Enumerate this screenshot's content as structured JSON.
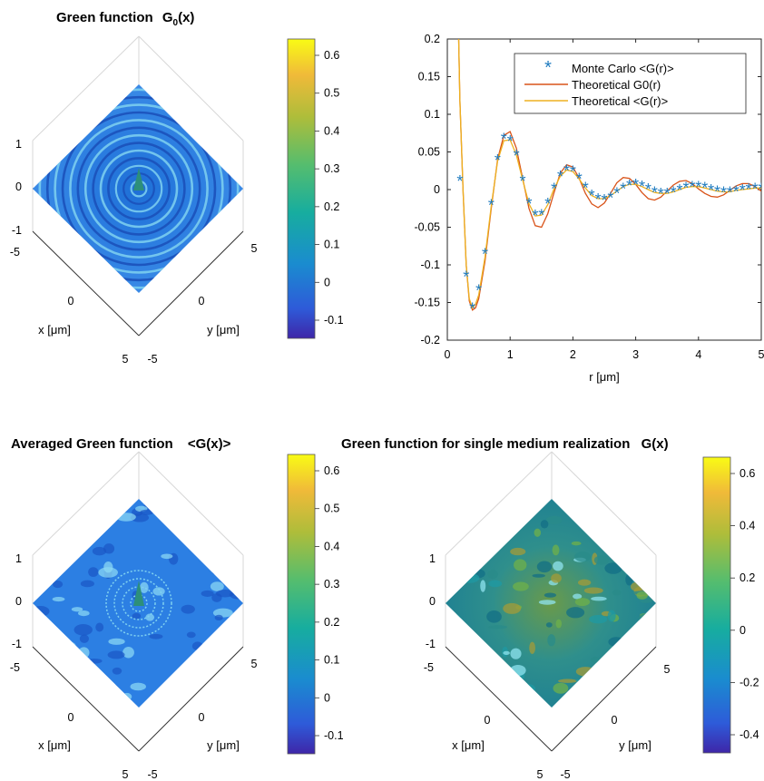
{
  "panels": {
    "tl": {
      "title": "Green function",
      "title_symbol": "G",
      "title_sub": "0",
      "title_arg": "(x)",
      "z_ticks": [
        "1",
        "0",
        "-1"
      ],
      "x_ticks": [
        "-5",
        "0",
        "5"
      ],
      "y_ticks": [
        "5",
        "0",
        "-5"
      ],
      "x_label": "x [μm]",
      "y_label": "y [μm]",
      "colorbar_ticks": [
        "0.6",
        "0.5",
        "0.4",
        "0.3",
        "0.2",
        "0.1",
        "0",
        "-0.1"
      ]
    },
    "bl": {
      "title": "Averaged Green function",
      "title_suffix": "<G(x)>",
      "z_ticks": [
        "1",
        "0",
        "-1"
      ],
      "x_ticks": [
        "-5",
        "0",
        "5"
      ],
      "y_ticks": [
        "5",
        "0",
        "-5"
      ],
      "x_label": "x [μm]",
      "y_label": "y [μm]",
      "colorbar_ticks": [
        "0.6",
        "0.5",
        "0.4",
        "0.3",
        "0.2",
        "0.1",
        "0",
        "-0.1"
      ]
    },
    "br": {
      "title": "Green function for single medium realization",
      "title_suffix": "G(x)",
      "z_ticks": [
        "1",
        "0",
        "-1"
      ],
      "x_ticks": [
        "-5",
        "0",
        "5"
      ],
      "y_ticks": [
        "5",
        "0",
        "-5"
      ],
      "x_label": "x [μm]",
      "y_label": "y [μm]",
      "colorbar_ticks": [
        "0.6",
        "0.4",
        "0.2",
        "0",
        "-0.2",
        "-0.4"
      ]
    }
  },
  "colors": {
    "monte_carlo": "#1f7bbf",
    "theory_g0": "#d95319",
    "theory_g": "#edb120",
    "parula": [
      "#3e26a8",
      "#2e5bd9",
      "#1a8ccf",
      "#17ad9f",
      "#55bd6e",
      "#aebd3a",
      "#f0ba39",
      "#f9fb15"
    ]
  },
  "chart_data": [
    {
      "type": "line",
      "xlabel": "r  [μm]",
      "ylabel": "",
      "xlim": [
        0,
        5
      ],
      "ylim": [
        -0.2,
        0.2
      ],
      "x_ticks": [
        "0",
        "1",
        "2",
        "3",
        "4",
        "5"
      ],
      "y_ticks": [
        "0.2",
        "0.15",
        "0.1",
        "0.05",
        "0",
        "-0.05",
        "-0.1",
        "-0.15",
        "-0.2"
      ],
      "legend_position": "top-right",
      "grid": false,
      "series": [
        {
          "name": "Monte Carlo  <G(r)>",
          "marker": "*",
          "x": [
            0.2,
            0.3,
            0.4,
            0.5,
            0.6,
            0.7,
            0.8,
            0.9,
            1.0,
            1.1,
            1.2,
            1.3,
            1.4,
            1.5,
            1.6,
            1.7,
            1.8,
            1.9,
            2.0,
            2.1,
            2.2,
            2.3,
            2.4,
            2.5,
            2.6,
            2.7,
            2.8,
            2.9,
            3.0,
            3.1,
            3.2,
            3.3,
            3.4,
            3.5,
            3.6,
            3.7,
            3.8,
            3.9,
            4.0,
            4.1,
            4.2,
            4.3,
            4.4,
            4.5,
            4.6,
            4.7,
            4.8,
            4.9,
            5.0
          ],
          "y": [
            0.012,
            -0.115,
            -0.157,
            -0.133,
            -0.085,
            -0.02,
            0.04,
            0.068,
            0.065,
            0.046,
            0.012,
            -0.018,
            -0.034,
            -0.033,
            -0.018,
            0.002,
            0.018,
            0.026,
            0.025,
            0.015,
            0.003,
            -0.007,
            -0.012,
            -0.013,
            -0.01,
            -0.004,
            0.002,
            0.006,
            0.007,
            0.005,
            0.001,
            -0.003,
            -0.005,
            -0.005,
            -0.003,
            0.0,
            0.003,
            0.004,
            0.004,
            0.003,
            0.0,
            -0.002,
            -0.003,
            -0.003,
            -0.002,
            0.0,
            0.001,
            0.002,
            0.002
          ]
        },
        {
          "name": "Theoretical  G0(r)",
          "x": [
            0.18,
            0.2,
            0.25,
            0.3,
            0.35,
            0.4,
            0.45,
            0.5,
            0.6,
            0.7,
            0.8,
            0.9,
            1.0,
            1.1,
            1.2,
            1.3,
            1.4,
            1.5,
            1.6,
            1.7,
            1.8,
            1.9,
            2.0,
            2.1,
            2.2,
            2.3,
            2.4,
            2.5,
            2.6,
            2.7,
            2.8,
            2.9,
            3.0,
            3.1,
            3.2,
            3.3,
            3.4,
            3.5,
            3.6,
            3.7,
            3.8,
            3.9,
            4.0,
            4.1,
            4.2,
            4.3,
            4.4,
            4.5,
            4.6,
            4.7,
            4.8,
            4.9,
            5.0
          ],
          "y": [
            0.2,
            0.12,
            0.0,
            -0.1,
            -0.148,
            -0.16,
            -0.157,
            -0.145,
            -0.095,
            -0.025,
            0.04,
            0.072,
            0.077,
            0.055,
            0.015,
            -0.025,
            -0.048,
            -0.05,
            -0.032,
            -0.004,
            0.022,
            0.033,
            0.03,
            0.015,
            -0.005,
            -0.019,
            -0.024,
            -0.018,
            -0.005,
            0.009,
            0.016,
            0.015,
            0.007,
            -0.004,
            -0.012,
            -0.014,
            -0.01,
            -0.002,
            0.006,
            0.011,
            0.012,
            0.008,
            0.001,
            -0.005,
            -0.009,
            -0.01,
            -0.007,
            -0.001,
            0.005,
            0.008,
            0.008,
            0.004,
            -0.002
          ]
        },
        {
          "name": "Theoretical  <G(r)>",
          "x": [
            0.18,
            0.2,
            0.25,
            0.3,
            0.35,
            0.4,
            0.45,
            0.5,
            0.6,
            0.7,
            0.8,
            0.9,
            1.0,
            1.1,
            1.2,
            1.3,
            1.4,
            1.5,
            1.6,
            1.7,
            1.8,
            1.9,
            2.0,
            2.1,
            2.2,
            2.3,
            2.4,
            2.5,
            2.6,
            2.7,
            2.8,
            2.9,
            3.0,
            3.1,
            3.2,
            3.3,
            3.4,
            3.5,
            3.6,
            3.7,
            3.8,
            3.9,
            4.0,
            4.1,
            4.2,
            4.3,
            4.4,
            4.5,
            4.6,
            4.7,
            4.8,
            4.9,
            5.0
          ],
          "y": [
            0.2,
            0.12,
            0.0,
            -0.1,
            -0.145,
            -0.157,
            -0.152,
            -0.14,
            -0.09,
            -0.022,
            0.038,
            0.065,
            0.066,
            0.046,
            0.013,
            -0.019,
            -0.035,
            -0.034,
            -0.02,
            0.001,
            0.018,
            0.026,
            0.024,
            0.014,
            0.002,
            -0.008,
            -0.012,
            -0.012,
            -0.008,
            -0.002,
            0.004,
            0.007,
            0.007,
            0.004,
            0.0,
            -0.004,
            -0.005,
            -0.005,
            -0.003,
            0.0,
            0.003,
            0.004,
            0.004,
            0.002,
            0.0,
            -0.002,
            -0.003,
            -0.003,
            -0.001,
            0.0,
            0.001,
            0.002,
            0.002
          ]
        }
      ]
    }
  ]
}
